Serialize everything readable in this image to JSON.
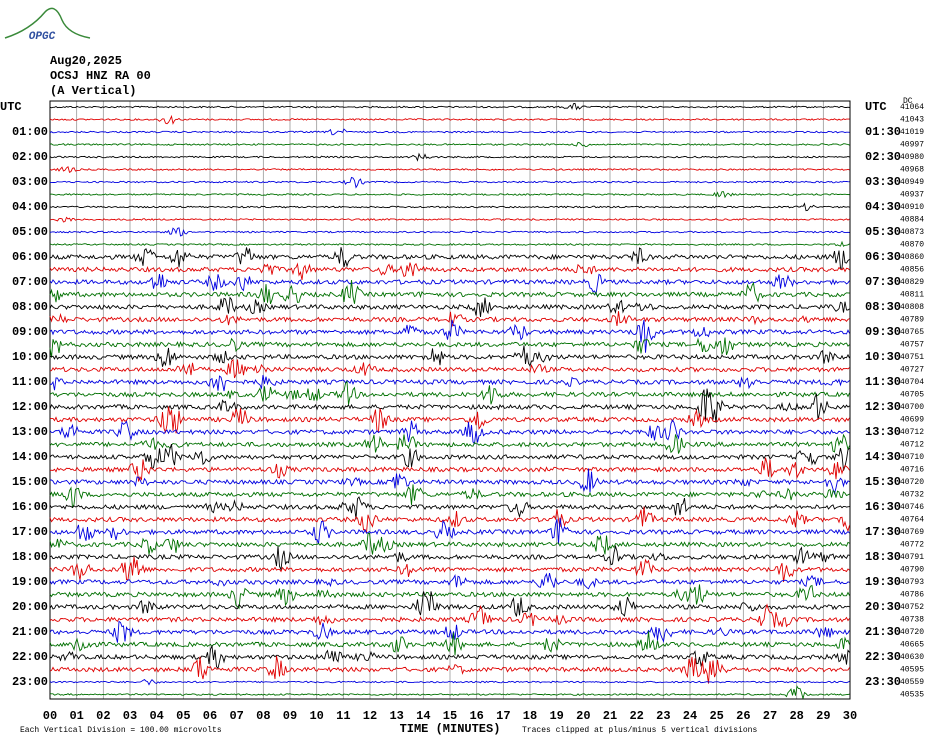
{
  "header": {
    "logo": "OPGC",
    "date": "Aug20,2025",
    "station": "OCSJ HNZ RA 00",
    "component": "(A Vertical)",
    "corner": "DC"
  },
  "left_labels": [
    "UTC",
    "01:00",
    "02:00",
    "03:00",
    "04:00",
    "05:00",
    "06:00",
    "07:00",
    "08:00",
    "09:00",
    "10:00",
    "11:00",
    "12:00",
    "13:00",
    "14:00",
    "15:00",
    "16:00",
    "17:00",
    "18:00",
    "19:00",
    "20:00",
    "21:00",
    "22:00",
    "23:00"
  ],
  "right_labels": [
    "UTC",
    "01:30",
    "02:30",
    "03:30",
    "04:30",
    "05:30",
    "06:30",
    "07:30",
    "08:30",
    "09:30",
    "10:30",
    "11:30",
    "12:30",
    "13:30",
    "14:30",
    "15:30",
    "16:30",
    "17:30",
    "18:30",
    "19:30",
    "20:30",
    "21:30",
    "22:30",
    "23:30"
  ],
  "trace_offsets": [
    41064,
    41043,
    41019,
    40997,
    40980,
    40968,
    40949,
    40937,
    40910,
    40884,
    40873,
    40870,
    40860,
    40856,
    40829,
    40811,
    40808,
    40789,
    40765,
    40757,
    40751,
    40727,
    40704,
    40705,
    40700,
    40699,
    40712,
    40712,
    40710,
    40716,
    40720,
    40732,
    40746,
    40764,
    40769,
    40772,
    40791,
    40790,
    40793,
    40786,
    40752,
    40738,
    40720,
    40665,
    40630,
    40595,
    40559,
    40535
  ],
  "trace_colors": [
    "#000000",
    "#e00000",
    "#0000e0",
    "#007000"
  ],
  "time_axis": {
    "ticks": [
      "00",
      "01",
      "02",
      "03",
      "04",
      "05",
      "06",
      "07",
      "08",
      "09",
      "10",
      "11",
      "12",
      "13",
      "14",
      "15",
      "16",
      "17",
      "18",
      "19",
      "20",
      "21",
      "22",
      "23",
      "24",
      "25",
      "26",
      "27",
      "28",
      "29",
      "30"
    ],
    "label": "TIME (MINUTES)"
  },
  "footer": {
    "scale": "Each Vertical Division =  100.00 microvolts",
    "clip": "Traces clipped at plus/minus 5 vertical divisions"
  }
}
